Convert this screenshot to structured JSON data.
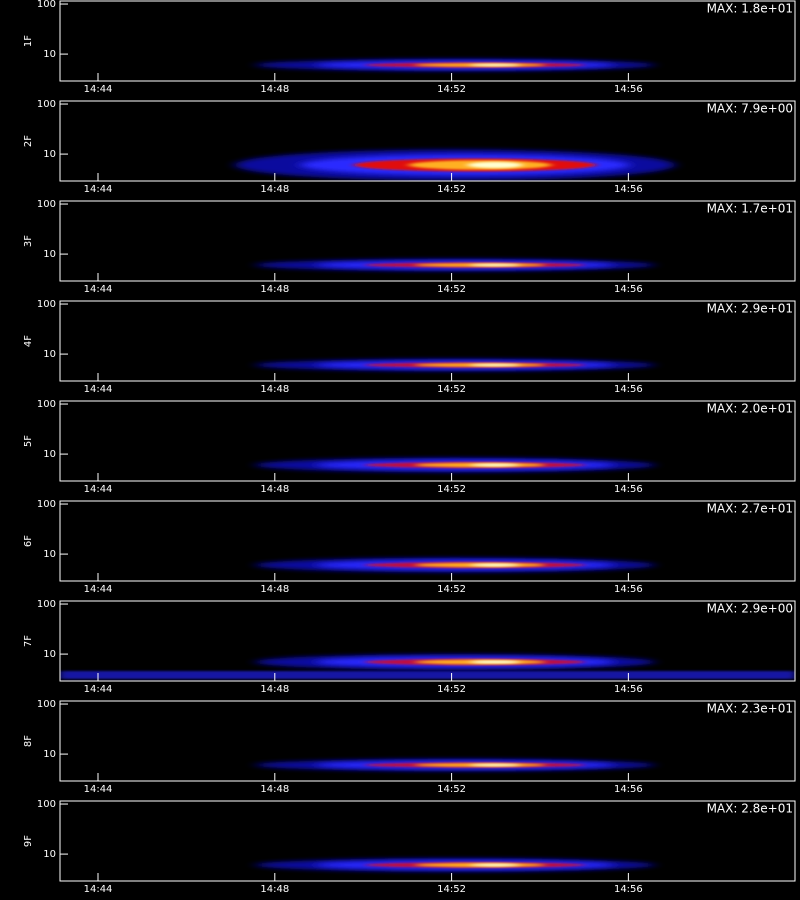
{
  "chart_data": [
    {
      "type": "spectrogram",
      "ylabel": "1F",
      "max_label": "MAX: 1.8e+01",
      "log_y": true,
      "ylim": [
        2.9,
        115
      ],
      "yticks": [
        10,
        100
      ],
      "xlim": [
        43.14,
        59.77
      ],
      "xticks": [
        {
          "value": 44,
          "label": "14:44"
        },
        {
          "value": 48,
          "label": "14:48"
        },
        {
          "value": 52,
          "label": "14:52"
        },
        {
          "value": 56,
          "label": "14:56"
        }
      ]
    },
    {
      "type": "spectrogram",
      "ylabel": "2F",
      "max_label": "MAX: 7.9e+00",
      "log_y": true,
      "ylim": [
        2.9,
        115
      ],
      "yticks": [
        10,
        100
      ],
      "xlim": [
        43.14,
        59.77
      ],
      "xticks": [
        {
          "value": 44,
          "label": "14:44"
        },
        {
          "value": 48,
          "label": "14:48"
        },
        {
          "value": 52,
          "label": "14:52"
        },
        {
          "value": 56,
          "label": "14:56"
        }
      ]
    },
    {
      "type": "spectrogram",
      "ylabel": "3F",
      "max_label": "MAX: 1.7e+01",
      "log_y": true,
      "ylim": [
        2.9,
        115
      ],
      "yticks": [
        10,
        100
      ],
      "xlim": [
        43.14,
        59.77
      ],
      "xticks": [
        {
          "value": 44,
          "label": "14:44"
        },
        {
          "value": 48,
          "label": "14:48"
        },
        {
          "value": 52,
          "label": "14:52"
        },
        {
          "value": 56,
          "label": "14:56"
        }
      ]
    },
    {
      "type": "spectrogram",
      "ylabel": "4F",
      "max_label": "MAX: 2.9e+01",
      "log_y": true,
      "ylim": [
        2.9,
        115
      ],
      "yticks": [
        10,
        100
      ],
      "xlim": [
        43.14,
        59.77
      ],
      "xticks": [
        {
          "value": 44,
          "label": "14:44"
        },
        {
          "value": 48,
          "label": "14:48"
        },
        {
          "value": 52,
          "label": "14:52"
        },
        {
          "value": 56,
          "label": "14:56"
        }
      ]
    },
    {
      "type": "spectrogram",
      "ylabel": "5F",
      "max_label": "MAX: 2.0e+01",
      "log_y": true,
      "ylim": [
        2.9,
        115
      ],
      "yticks": [
        10,
        100
      ],
      "xlim": [
        43.14,
        59.77
      ],
      "xticks": [
        {
          "value": 44,
          "label": "14:44"
        },
        {
          "value": 48,
          "label": "14:48"
        },
        {
          "value": 52,
          "label": "14:52"
        },
        {
          "value": 56,
          "label": "14:56"
        }
      ]
    },
    {
      "type": "spectrogram",
      "ylabel": "6F",
      "max_label": "MAX: 2.7e+01",
      "log_y": true,
      "ylim": [
        2.9,
        115
      ],
      "yticks": [
        10,
        100
      ],
      "xlim": [
        43.14,
        59.77
      ],
      "xticks": [
        {
          "value": 44,
          "label": "14:44"
        },
        {
          "value": 48,
          "label": "14:48"
        },
        {
          "value": 52,
          "label": "14:52"
        },
        {
          "value": 56,
          "label": "14:56"
        }
      ]
    },
    {
      "type": "spectrogram",
      "ylabel": "7F",
      "max_label": "MAX: 2.9e+00",
      "log_y": true,
      "ylim": [
        2.9,
        115
      ],
      "yticks": [
        10,
        100
      ],
      "xlim": [
        43.14,
        59.77
      ],
      "xticks": [
        {
          "value": 44,
          "label": "14:44"
        },
        {
          "value": 48,
          "label": "14:48"
        },
        {
          "value": 52,
          "label": "14:52"
        },
        {
          "value": 56,
          "label": "14:56"
        }
      ]
    },
    {
      "type": "spectrogram",
      "ylabel": "8F",
      "max_label": "MAX: 2.3e+01",
      "log_y": true,
      "ylim": [
        2.9,
        115
      ],
      "yticks": [
        10,
        100
      ],
      "xlim": [
        43.14,
        59.77
      ],
      "xticks": [
        {
          "value": 44,
          "label": "14:44"
        },
        {
          "value": 48,
          "label": "14:48"
        },
        {
          "value": 52,
          "label": "14:52"
        },
        {
          "value": 56,
          "label": "14:56"
        }
      ]
    },
    {
      "type": "spectrogram",
      "ylabel": "9F",
      "max_label": "MAX: 2.8e+01",
      "log_y": true,
      "ylim": [
        2.9,
        115
      ],
      "yticks": [
        10,
        100
      ],
      "xlim": [
        43.14,
        59.77
      ],
      "xticks": [
        {
          "value": 44,
          "label": "14:44"
        },
        {
          "value": 48,
          "label": "14:48"
        },
        {
          "value": 52,
          "label": "14:52"
        },
        {
          "value": 56,
          "label": "14:56"
        }
      ]
    }
  ]
}
